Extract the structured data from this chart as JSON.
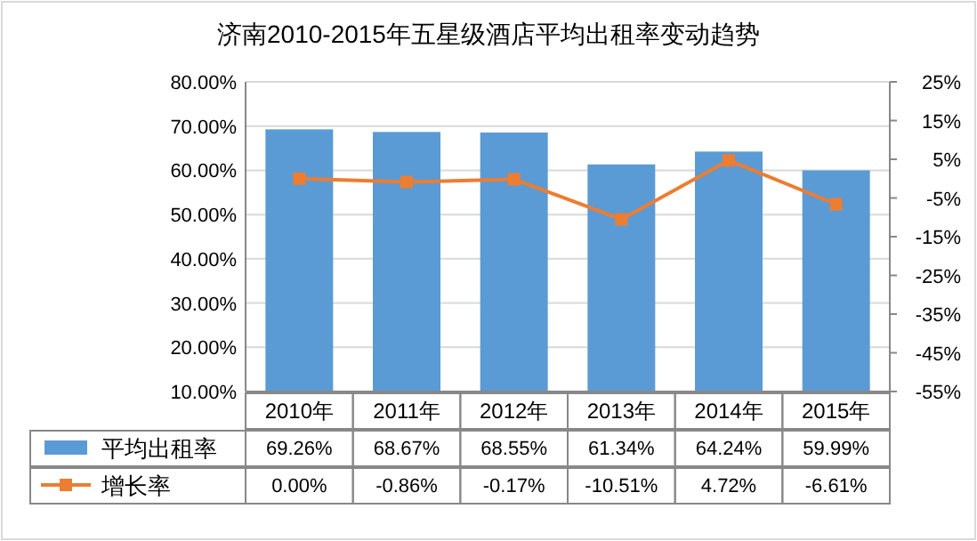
{
  "chart_data": {
    "type": "bar",
    "title": "济南2010-2015年五星级酒店平均出租率变动趋势",
    "categories": [
      "2010年",
      "2011年",
      "2012年",
      "2013年",
      "2014年",
      "2015年"
    ],
    "series": [
      {
        "name": "平均出租率",
        "color": "#5b9bd5",
        "values": [
          69.26,
          68.67,
          68.55,
          61.34,
          64.24,
          59.99
        ],
        "value_labels": [
          "69.26%",
          "68.67%",
          "68.55%",
          "61.34%",
          "64.24%",
          "59.99%"
        ]
      },
      {
        "name": "增长率",
        "type": "line",
        "axis": "y2",
        "marker": "square",
        "color": "#ed7d31",
        "values": [
          0,
          -0.86,
          -0.17,
          -10.51,
          4.72,
          -6.61
        ],
        "value_labels": [
          "0.00%",
          "-0.86%",
          "-0.17%",
          "-10.51%",
          "4.72%",
          "-6.61%"
        ]
      }
    ],
    "ylim": [
      10,
      80
    ],
    "yticks": [
      {
        "value": 10,
        "label": "10.00%"
      },
      {
        "value": 20,
        "label": "20.00%"
      },
      {
        "value": 30,
        "label": "30.00%"
      },
      {
        "value": 40,
        "label": "40.00%"
      },
      {
        "value": 50,
        "label": "50.00%"
      },
      {
        "value": 60,
        "label": "60.00%"
      },
      {
        "value": 70,
        "label": "70.00%"
      },
      {
        "value": 80,
        "label": "80.00%"
      }
    ],
    "y2lim": [
      -55,
      25
    ],
    "y2ticks": [
      {
        "value": -55,
        "label": "-55%"
      },
      {
        "value": -45,
        "label": "-45%"
      },
      {
        "value": -35,
        "label": "-35%"
      },
      {
        "value": -25,
        "label": "-25%"
      },
      {
        "value": -15,
        "label": "-15%"
      },
      {
        "value": -5,
        "label": "-5%"
      },
      {
        "value": 5,
        "label": "5%"
      },
      {
        "value": 15,
        "label": "15%"
      },
      {
        "value": 25,
        "label": "25%"
      }
    ],
    "grid": "y",
    "legend": "bottom"
  }
}
